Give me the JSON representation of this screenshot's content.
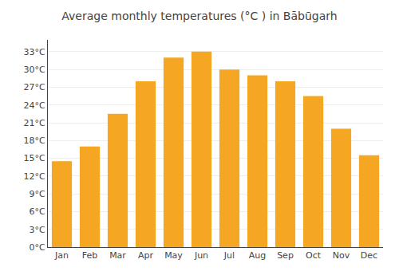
{
  "chart_data": {
    "type": "bar",
    "title": "Average monthly temperatures (°C ) in Bābūgarh",
    "categories": [
      "Jan",
      "Feb",
      "Mar",
      "Apr",
      "May",
      "Jun",
      "Jul",
      "Aug",
      "Sep",
      "Oct",
      "Nov",
      "Dec"
    ],
    "values": [
      14.5,
      17,
      22.5,
      28,
      32,
      33,
      30,
      29,
      28,
      25.5,
      20,
      15.5
    ],
    "color": "#F5A623",
    "ylim": [
      0,
      35
    ],
    "yticks": [
      {
        "value": 0,
        "label": "0°C"
      },
      {
        "value": 3,
        "label": "3°C"
      },
      {
        "value": 6,
        "label": "6°C"
      },
      {
        "value": 9,
        "label": "9°C"
      },
      {
        "value": 12,
        "label": "12°C"
      },
      {
        "value": 15,
        "label": "15°C"
      },
      {
        "value": 18,
        "label": "18°C"
      },
      {
        "value": 21,
        "label": "21°C"
      },
      {
        "value": 24,
        "label": "24°C"
      },
      {
        "value": 27,
        "label": "27°C"
      },
      {
        "value": 30,
        "label": "30°C"
      },
      {
        "value": 33,
        "label": "33°C"
      }
    ],
    "grid": true
  }
}
